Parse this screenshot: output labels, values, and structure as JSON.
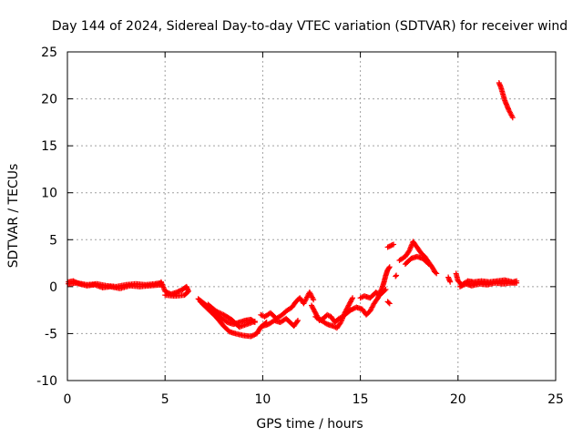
{
  "chart_data": {
    "type": "scatter",
    "title": "Day 144 of 2024, Sidereal Day-to-day VTEC variation (SDTVAR) for receiver wind",
    "xlabel": "GPS time / hours",
    "ylabel": "SDTVAR / TECUs",
    "xlim": [
      0,
      25
    ],
    "ylim": [
      -10,
      25
    ],
    "xticks": [
      "0",
      "5",
      "10",
      "15",
      "20",
      "25"
    ],
    "yticks": [
      "-10",
      "-5",
      "0",
      "5",
      "10",
      "15",
      "20",
      "25"
    ],
    "grid": true,
    "marker": "+",
    "color": "#ff0000",
    "series": [
      {
        "name": "SDTVAR",
        "segments": [
          [
            [
              0.05,
              0.3
            ],
            [
              0.5,
              0.4
            ],
            [
              1.0,
              0.2
            ],
            [
              1.5,
              0.3
            ],
            [
              2.0,
              0.1
            ],
            [
              2.5,
              0.0
            ],
            [
              3.0,
              0.2
            ],
            [
              3.5,
              0.3
            ],
            [
              4.0,
              0.2
            ],
            [
              4.5,
              0.3
            ],
            [
              4.8,
              0.4
            ]
          ],
          [
            [
              0.05,
              0.5
            ],
            [
              0.3,
              0.6
            ],
            [
              0.6,
              0.3
            ],
            [
              1.0,
              0.1
            ],
            [
              1.4,
              0.2
            ],
            [
              1.8,
              -0.1
            ],
            [
              2.2,
              0.0
            ],
            [
              2.7,
              -0.2
            ],
            [
              3.2,
              0.1
            ],
            [
              3.7,
              0.0
            ],
            [
              4.2,
              0.1
            ],
            [
              4.8,
              0.2
            ]
          ],
          [
            [
              4.8,
              0.5
            ],
            [
              5.0,
              -0.5
            ],
            [
              5.3,
              -0.8
            ],
            [
              5.6,
              -0.6
            ],
            [
              5.9,
              -0.3
            ],
            [
              6.1,
              0.0
            ],
            [
              6.2,
              -0.5
            ],
            [
              6.0,
              -0.9
            ],
            [
              5.5,
              -1.0
            ],
            [
              5.0,
              -0.9
            ]
          ],
          [
            [
              6.7,
              -1.3
            ],
            [
              7.0,
              -1.8
            ],
            [
              7.3,
              -2.3
            ],
            [
              7.6,
              -2.8
            ],
            [
              7.9,
              -3.4
            ],
            [
              8.2,
              -3.8
            ],
            [
              8.5,
              -4.0
            ],
            [
              8.8,
              -3.8
            ],
            [
              9.1,
              -3.6
            ],
            [
              9.4,
              -3.5
            ],
            [
              9.6,
              -3.8
            ]
          ],
          [
            [
              6.8,
              -1.6
            ],
            [
              7.2,
              -2.4
            ],
            [
              7.6,
              -3.2
            ],
            [
              8.0,
              -4.2
            ],
            [
              8.3,
              -4.8
            ],
            [
              8.6,
              -5.0
            ],
            [
              9.0,
              -5.2
            ],
            [
              9.4,
              -5.3
            ],
            [
              9.7,
              -5.0
            ],
            [
              9.9,
              -4.3
            ],
            [
              10.2,
              -3.8
            ]
          ],
          [
            [
              7.2,
              -1.9
            ],
            [
              7.6,
              -2.6
            ],
            [
              8.0,
              -3.0
            ],
            [
              8.4,
              -3.5
            ],
            [
              8.8,
              -4.3
            ],
            [
              9.2,
              -4.0
            ],
            [
              9.6,
              -3.7
            ]
          ],
          [
            [
              9.9,
              -3.0
            ],
            [
              10.1,
              -3.2
            ],
            [
              10.4,
              -2.8
            ],
            [
              10.7,
              -3.4
            ],
            [
              11.0,
              -3.0
            ],
            [
              11.2,
              -2.6
            ],
            [
              11.5,
              -2.2
            ],
            [
              11.7,
              -1.6
            ],
            [
              11.9,
              -1.2
            ],
            [
              12.1,
              -1.8
            ],
            [
              12.3,
              -1.0
            ],
            [
              12.4,
              -0.6
            ],
            [
              12.6,
              -1.4
            ]
          ],
          [
            [
              10.0,
              -4.2
            ],
            [
              10.3,
              -4.0
            ],
            [
              10.6,
              -3.6
            ],
            [
              10.9,
              -3.8
            ],
            [
              11.2,
              -3.4
            ],
            [
              11.4,
              -3.8
            ],
            [
              11.6,
              -4.2
            ],
            [
              11.8,
              -3.6
            ]
          ],
          [
            [
              12.5,
              -2.0
            ],
            [
              12.7,
              -2.8
            ],
            [
              12.9,
              -3.6
            ],
            [
              13.1,
              -3.4
            ],
            [
              13.3,
              -3.0
            ],
            [
              13.5,
              -3.2
            ],
            [
              13.7,
              -3.8
            ],
            [
              13.9,
              -3.4
            ],
            [
              14.1,
              -3.2
            ]
          ],
          [
            [
              12.7,
              -3.2
            ],
            [
              13.0,
              -3.6
            ],
            [
              13.3,
              -4.0
            ],
            [
              13.6,
              -4.2
            ],
            [
              13.8,
              -4.4
            ],
            [
              14.0,
              -3.8
            ],
            [
              14.2,
              -2.8
            ],
            [
              14.4,
              -2.0
            ],
            [
              14.6,
              -1.2
            ]
          ],
          [
            [
              14.2,
              -3.0
            ],
            [
              14.5,
              -2.5
            ],
            [
              14.8,
              -2.2
            ],
            [
              15.1,
              -2.4
            ],
            [
              15.3,
              -3.0
            ],
            [
              15.5,
              -2.6
            ],
            [
              15.7,
              -1.8
            ],
            [
              15.9,
              -1.2
            ],
            [
              16.0,
              -0.6
            ],
            [
              16.1,
              -0.2
            ],
            [
              16.2,
              0.4
            ],
            [
              16.3,
              1.2
            ],
            [
              16.4,
              1.8
            ],
            [
              16.5,
              2.1
            ]
          ],
          [
            [
              15.0,
              -1.2
            ],
            [
              15.2,
              -1.0
            ],
            [
              15.5,
              -1.2
            ],
            [
              15.8,
              -0.6
            ],
            [
              16.0,
              -0.9
            ],
            [
              16.3,
              -0.3
            ]
          ],
          [
            [
              16.4,
              -1.6
            ],
            [
              16.5,
              -1.8
            ]
          ],
          [
            [
              16.4,
              4.2
            ],
            [
              16.7,
              4.5
            ]
          ],
          [
            [
              16.8,
              1.1
            ]
          ],
          [
            [
              17.0,
              2.8
            ],
            [
              17.3,
              3.2
            ],
            [
              17.5,
              3.8
            ],
            [
              17.7,
              4.8
            ],
            [
              17.9,
              4.2
            ],
            [
              18.1,
              3.6
            ],
            [
              18.3,
              3.2
            ],
            [
              18.5,
              2.6
            ],
            [
              18.7,
              2.0
            ],
            [
              18.8,
              1.6
            ],
            [
              18.9,
              1.4
            ]
          ],
          [
            [
              17.3,
              2.4
            ],
            [
              17.6,
              3.0
            ],
            [
              17.9,
              3.2
            ],
            [
              18.2,
              3.0
            ],
            [
              18.5,
              2.4
            ]
          ],
          [
            [
              19.5,
              1.0
            ],
            [
              19.6,
              0.5
            ]
          ],
          [
            [
              19.9,
              1.4
            ],
            [
              20.0,
              0.6
            ],
            [
              20.2,
              0.2
            ],
            [
              20.5,
              0.6
            ],
            [
              20.8,
              0.5
            ],
            [
              21.2,
              0.6
            ],
            [
              21.6,
              0.5
            ],
            [
              22.0,
              0.6
            ],
            [
              22.4,
              0.7
            ],
            [
              22.8,
              0.5
            ],
            [
              23.0,
              0.6
            ]
          ],
          [
            [
              20.1,
              0.0
            ],
            [
              20.4,
              0.3
            ],
            [
              20.7,
              0.1
            ],
            [
              21.1,
              0.3
            ],
            [
              21.5,
              0.2
            ],
            [
              21.9,
              0.4
            ],
            [
              22.3,
              0.3
            ],
            [
              22.7,
              0.4
            ],
            [
              23.0,
              0.4
            ]
          ],
          [
            [
              22.1,
              21.7
            ],
            [
              22.2,
              21.2
            ],
            [
              22.3,
              20.5
            ],
            [
              22.4,
              19.8
            ],
            [
              22.5,
              19.3
            ],
            [
              22.6,
              18.8
            ],
            [
              22.7,
              18.4
            ],
            [
              22.8,
              18.0
            ]
          ]
        ]
      }
    ]
  }
}
